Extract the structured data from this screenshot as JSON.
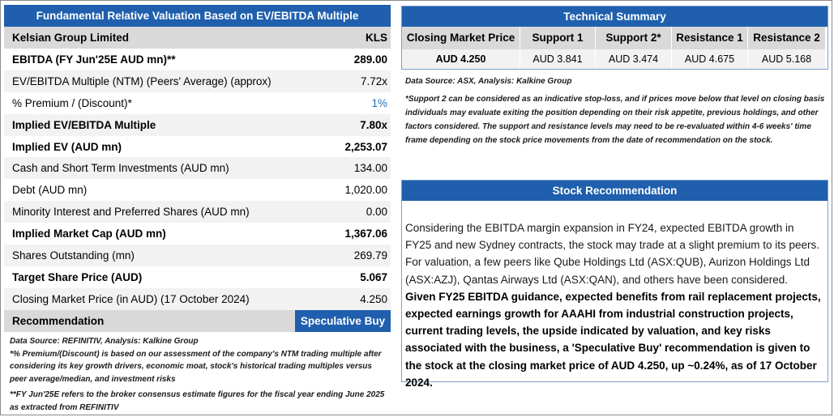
{
  "valuation": {
    "header": "Fundamental Relative Valuation Based on EV/EBITDA Multiple",
    "company": "Kelsian Group Limited",
    "ticker": "KLS",
    "rows": [
      {
        "label": "EBITDA (FY Jun'25E AUD mn)**",
        "value": "289.00"
      },
      {
        "label": "EV/EBITDA Multiple (NTM)  (Peers' Average) (approx)",
        "value": "7.72x"
      },
      {
        "label": "% Premium / (Discount)*",
        "value": "1%"
      },
      {
        "label": "Implied EV/EBITDA Multiple",
        "value": "7.80x"
      },
      {
        "label": "Implied EV (AUD mn)",
        "value": "2,253.07"
      },
      {
        "label": "Cash and Short Term Investments (AUD mn)",
        "value": "134.00"
      },
      {
        "label": "Debt (AUD mn)",
        "value": "1,020.00"
      },
      {
        "label": "Minority Interest and Preferred Shares (AUD mn)",
        "value": "0.00"
      },
      {
        "label": "Implied Market Cap (AUD mn)",
        "value": "1,367.06"
      },
      {
        "label": "Shares Outstanding (mn)",
        "value": "269.79"
      },
      {
        "label": "Target Share Price (AUD)",
        "value": "5.067"
      },
      {
        "label": "Closing Market Price (in AUD) (17 October 2024)",
        "value": "4.250"
      },
      {
        "label": "Recommendation",
        "value": "Speculative Buy"
      }
    ],
    "notes": {
      "source": "Data Source: REFINITIV, Analysis: Kalkine Group",
      "premium": "*% Premium/(Discount) is based on our assessment of the company's NTM trading multiple after considering its key growth drivers, economic moat, stock's historical trading multiples versus peer average/median, and investment risks",
      "fy": "**FY Jun'25E refers to the broker consensus estimate figures for the fiscal year ending June 2025 as extracted from REFINITIV"
    }
  },
  "technical": {
    "header": "Technical Summary",
    "columns": [
      "Closing Market Price",
      "Support 1",
      "Support 2*",
      "Resistance 1",
      "Resistance 2"
    ],
    "values": [
      "AUD 4.250",
      "AUD 3.841",
      "AUD 3.474",
      "AUD 4.675",
      "AUD 5.168"
    ],
    "source": "Data Source: ASX, Analysis: Kalkine Group",
    "note": "*Support 2 can be considered as an indicative stop-loss, and if prices move below that level on closing basis individuals may evaluate exiting the position depending on their risk appetite, previous holdings, and other factors considered. The support and resistance levels may need to be re-evaluated within 4-6 weeks' time frame depending on the stock price movements from the date of recommendation on the stock."
  },
  "recommendation": {
    "header": "Stock Recommendation",
    "text_plain": "Considering the EBITDA margin expansion in FY24, expected EBITDA growth in FY25 and new Sydney contracts, the stock may trade at a slight premium to its peers. For valuation, a few peers like Qube Holdings Ltd (ASX:QUB), Aurizon Holdings Ltd (ASX:AZJ), Qantas Airways Ltd (ASX:QAN), and others have been considered.",
    "text_bold": "Given FY25 EBITDA guidance, expected benefits from rail replacement projects, expected earnings growth for AAAHI from industrial construction projects, current trading levels, the upside indicated by valuation, and key risks associated with the business, a 'Speculative Buy' recommendation is given to the stock at the closing market price of AUD 4.250, up ~0.24%, as of 17 October 2024."
  },
  "colors": {
    "header_blue": "#1f5fad",
    "row_gray": "#d9d9d9",
    "row_light": "#f2f2f2",
    "accent_blue": "#1f6fbf"
  }
}
